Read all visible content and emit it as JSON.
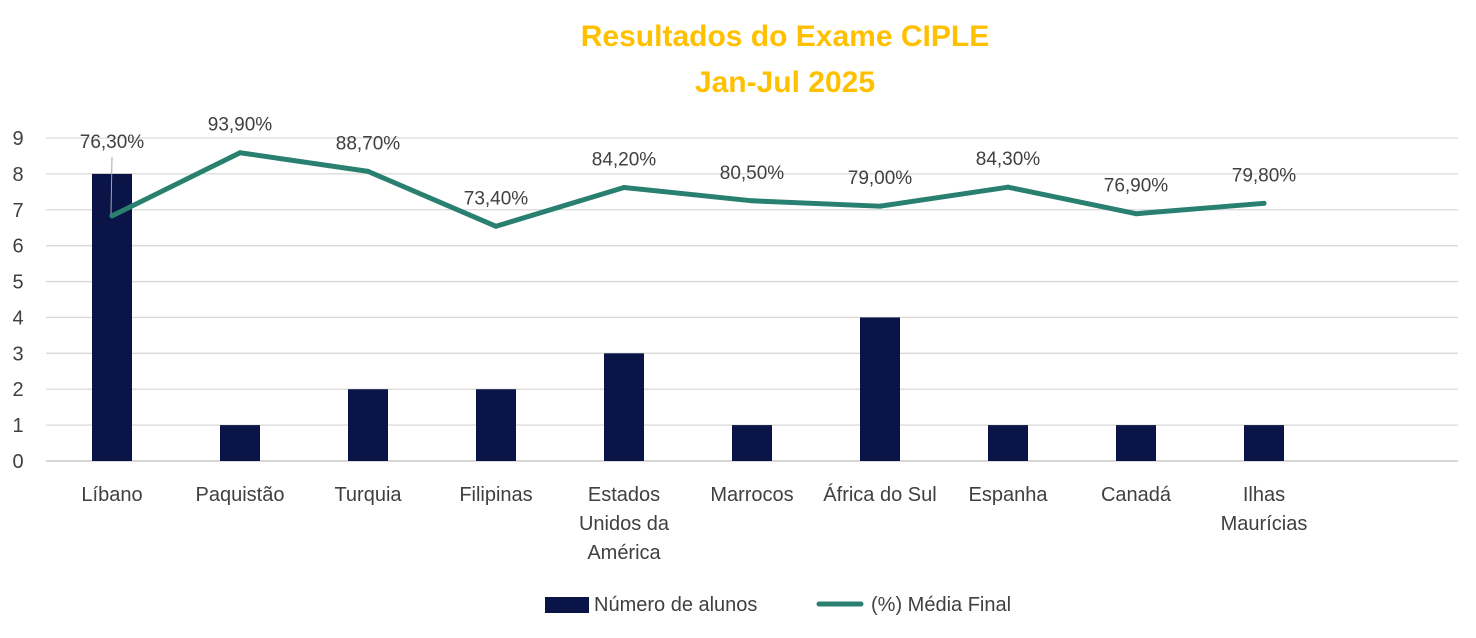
{
  "chart_data": {
    "type": "bar+line",
    "title": "Resultados do Exame CIPLE",
    "subtitle": "Jan-Jul 2025",
    "categories": [
      [
        "Líbano"
      ],
      [
        "Paquistão"
      ],
      [
        "Turquia"
      ],
      [
        "Filipinas"
      ],
      [
        "Estados",
        "Unidos da",
        "América"
      ],
      [
        "Marrocos"
      ],
      [
        "África do Sul"
      ],
      [
        "Espanha"
      ],
      [
        "Canadá"
      ],
      [
        "Ilhas",
        "Maurícias"
      ]
    ],
    "series": [
      {
        "name": "Número de alunos",
        "type": "bar",
        "color": "#0B1446",
        "values": [
          8,
          1,
          2,
          2,
          3,
          1,
          4,
          1,
          1,
          1
        ]
      },
      {
        "name": "(%) Média Final",
        "type": "line",
        "color": "#2A8070",
        "values": [
          76.3,
          93.9,
          88.7,
          73.4,
          84.2,
          80.5,
          79.0,
          84.3,
          76.9,
          79.8
        ],
        "labels": [
          "76,30%",
          "93,90%",
          "88,70%",
          "73,40%",
          "84,20%",
          "80,50%",
          "79,00%",
          "84,30%",
          "76,90%",
          "79,80%"
        ]
      }
    ],
    "y_ticks": [
      "0",
      "1",
      "2",
      "3",
      "4",
      "5",
      "6",
      "7",
      "8",
      "9"
    ],
    "ylim": [
      0,
      9
    ],
    "grid": true,
    "legend_position": "bottom"
  }
}
